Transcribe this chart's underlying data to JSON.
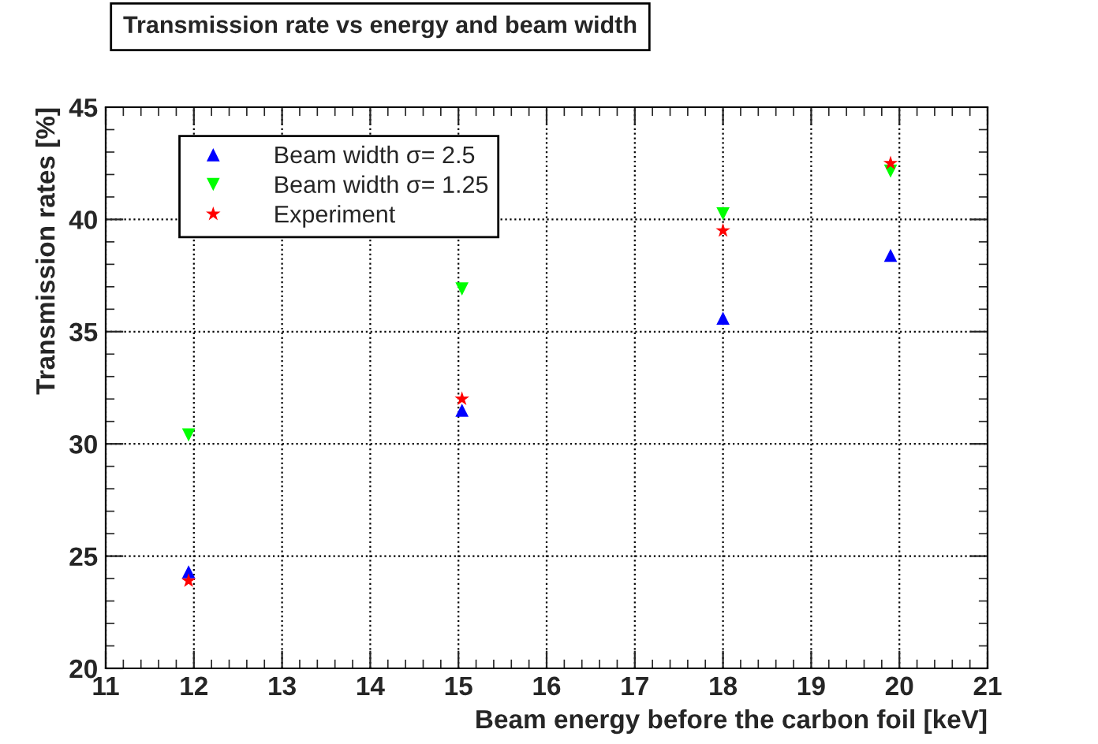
{
  "chart_data": {
    "type": "scatter",
    "title": "Transmission rate vs energy and beam width",
    "xlabel": "Beam energy before the carbon foil [keV]",
    "ylabel": "Transmission rates [%]",
    "xlim": [
      11,
      21
    ],
    "xticks": [
      11,
      12,
      13,
      14,
      15,
      16,
      17,
      18,
      19,
      20,
      21
    ],
    "ylim": [
      20,
      45
    ],
    "yticks": [
      20,
      25,
      30,
      35,
      40,
      45
    ],
    "grid": true,
    "legend": "top left",
    "series": [
      {
        "name": "Beam width σ= 2.5",
        "color": "#0000ff",
        "marker": "triangle",
        "x": [
          11.94,
          15.04,
          18.0,
          19.9
        ],
        "values": [
          24.3,
          31.5,
          35.6,
          38.4
        ]
      },
      {
        "name": "Beam width σ= 1.25",
        "color": "#00ff00",
        "marker": "triangle-down",
        "x": [
          11.94,
          15.04,
          18.0,
          19.9
        ],
        "values": [
          30.4,
          36.9,
          40.25,
          42.15
        ]
      },
      {
        "name": "Experiment",
        "color": "#ff0000",
        "marker": "star",
        "x": [
          11.94,
          15.04,
          18.0,
          19.9
        ],
        "values": [
          23.9,
          32.0,
          39.5,
          42.5
        ]
      }
    ]
  }
}
